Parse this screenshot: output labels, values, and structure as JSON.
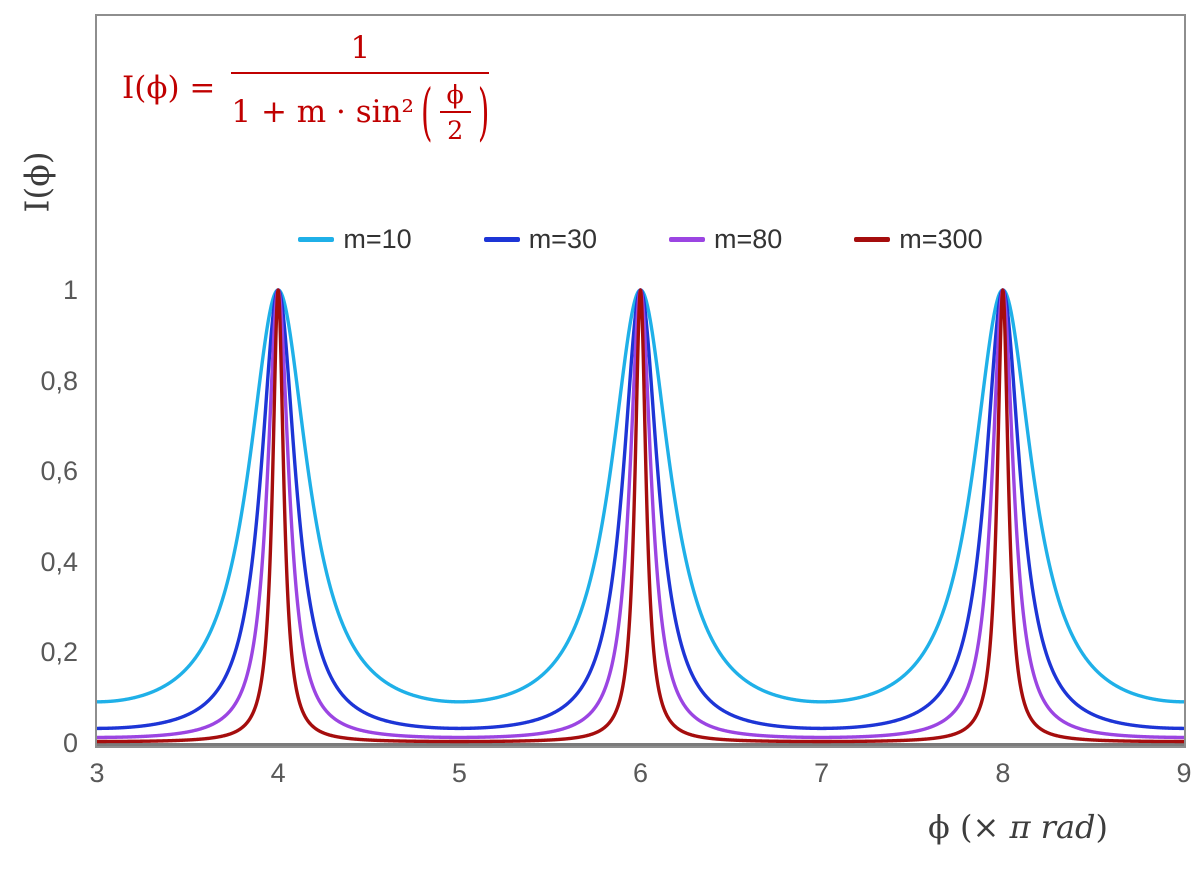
{
  "chart_data": {
    "type": "line",
    "title": "",
    "function": "I(phi) = 1 / (1 + m * sin^2(phi/2)), phi = x * pi rad",
    "x_range": [
      3,
      9
    ],
    "ylim": [
      0,
      1
    ],
    "x_unit": "pi rad",
    "grid": false,
    "legend_position": "top-center",
    "peaks_at_x": [
      4,
      6,
      8
    ],
    "series": [
      {
        "label": "m=10",
        "m": 10,
        "color": "#1fb0e8"
      },
      {
        "label": "m=30",
        "m": 30,
        "color": "#1d35d6"
      },
      {
        "label": "m=80",
        "m": 80,
        "color": "#9b45e2"
      },
      {
        "label": "m=300",
        "m": 300,
        "color": "#a50d0d"
      }
    ],
    "x_ticks": [
      {
        "v": 3,
        "label": "3"
      },
      {
        "v": 4,
        "label": "4"
      },
      {
        "v": 5,
        "label": "5"
      },
      {
        "v": 6,
        "label": "6"
      },
      {
        "v": 7,
        "label": "7"
      },
      {
        "v": 8,
        "label": "8"
      },
      {
        "v": 9,
        "label": "9"
      }
    ],
    "y_ticks": [
      {
        "v": 0,
        "label": "0"
      },
      {
        "v": 0.2,
        "label": "0,2"
      },
      {
        "v": 0.4,
        "label": "0,4"
      },
      {
        "v": 0.6,
        "label": "0,6"
      },
      {
        "v": 0.8,
        "label": "0,8"
      },
      {
        "v": 1,
        "label": "1"
      }
    ]
  },
  "formula": {
    "color": "#c00000",
    "lhs": "I(ϕ) =",
    "numerator": "1",
    "den_left": "1 + m · sin²",
    "inner_num": "ϕ",
    "inner_den": "2"
  },
  "axes": {
    "y_title": "I(ϕ)",
    "x_title_prefix": "ϕ  (× ",
    "x_title_italic": "π rad",
    "x_title_suffix": ")"
  },
  "colors": {
    "frame_border": "#8e8e8e",
    "axis_line": "#7b7b7b",
    "tick_text": "#595959"
  }
}
